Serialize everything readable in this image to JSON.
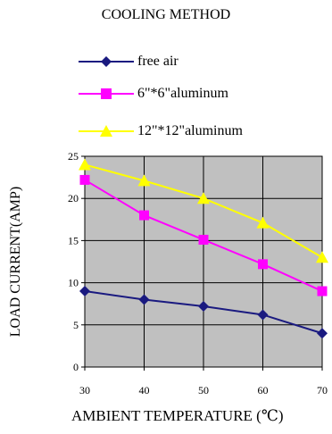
{
  "chart_data": {
    "type": "line",
    "title": "COOLING METHOD",
    "xlabel": "AMBIENT TEMPERATURE (℃)",
    "ylabel": "LOAD CURRENT(AMP)",
    "x": [
      30,
      40,
      50,
      60,
      70
    ],
    "xlim": [
      30,
      70
    ],
    "ylim": [
      0,
      25
    ],
    "yticks": [
      0,
      5,
      10,
      15,
      20,
      25
    ],
    "xticks": [
      30,
      40,
      50,
      60,
      70
    ],
    "grid": true,
    "legend_position": "top",
    "plot_background": "#c0c0c0",
    "series": [
      {
        "name": "free air",
        "color": "#1a1a80",
        "marker": "diamond",
        "values": [
          9,
          8,
          7.2,
          6.2,
          4
        ]
      },
      {
        "name": "6\"*6\"aluminum",
        "color": "#ff00ff",
        "marker": "square",
        "values": [
          22.2,
          18,
          15.1,
          12.2,
          9
        ]
      },
      {
        "name": "12\"*12\"aluminum",
        "color": "#ffff00",
        "marker": "triangle",
        "values": [
          24,
          22.1,
          20,
          17.1,
          13
        ]
      }
    ]
  }
}
